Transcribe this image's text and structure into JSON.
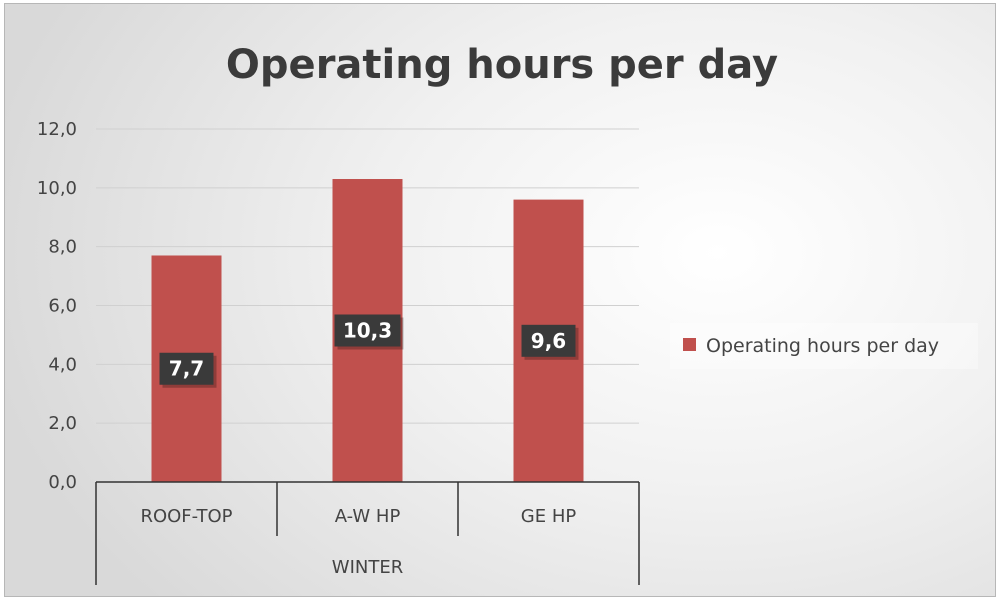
{
  "chart_data": {
    "type": "bar",
    "title": "Operating hours per day",
    "categories": [
      "ROOF-TOP",
      "A-W HP",
      "GE HP"
    ],
    "group_label": "WINTER",
    "series": [
      {
        "name": "Operating hours per day",
        "values": [
          7.7,
          10.3,
          9.6
        ],
        "value_labels": [
          "7,7",
          "10,3",
          "9,6"
        ]
      }
    ],
    "ylim": [
      0,
      12
    ],
    "yticks": [
      0,
      2,
      4,
      6,
      8,
      10,
      12
    ],
    "ytick_labels": [
      "0,0",
      "2,0",
      "4,0",
      "6,0",
      "8,0",
      "10,0",
      "12,0"
    ],
    "grid": true,
    "legend_position": "right",
    "colors": {
      "bar": "#c0504d",
      "data_label_bg": "#3a3a3a",
      "grid": "#d0d0d0",
      "axis": "#333333"
    }
  }
}
